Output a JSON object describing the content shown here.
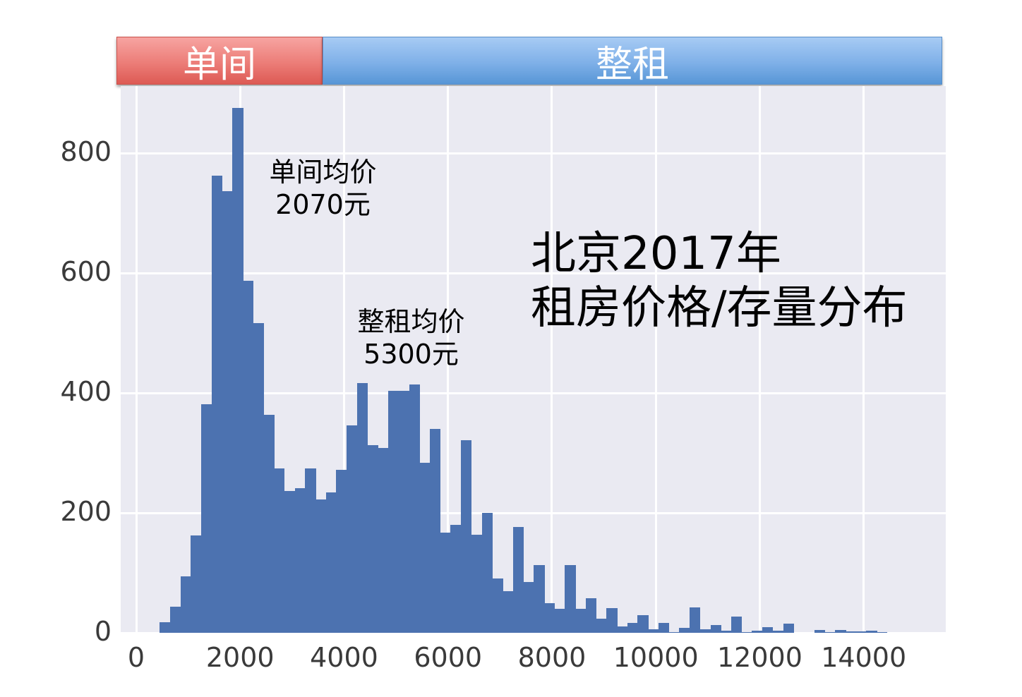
{
  "bands": {
    "left": {
      "label": "单间",
      "color": "#e8706a"
    },
    "right": {
      "label": "整租",
      "color": "#6aa3e0"
    }
  },
  "annotations": {
    "single_avg": {
      "line1": "单间均价",
      "line2": "2070元"
    },
    "whole_avg": {
      "line1": "整租均价",
      "line2": "5300元"
    },
    "title_line1": "北京2017年",
    "title_line2": "租房价格/存量分布"
  },
  "axes": {
    "y_ticks": [
      "0",
      "200",
      "400",
      "600",
      "800"
    ],
    "x_ticks": [
      "0",
      "2000",
      "4000",
      "6000",
      "8000",
      "10000",
      "12000",
      "14000"
    ]
  },
  "chart_data": {
    "type": "bar",
    "title": "北京2017年 租房价格/存量分布",
    "xlabel": "",
    "ylabel": "",
    "bar_color": "#4c72b0",
    "background": "#eaeaf2",
    "grid": true,
    "bin_start": 450,
    "bin_width": 200,
    "xlim": [
      -300,
      15600
    ],
    "ylim": [
      0,
      912
    ],
    "x_ticks": [
      0,
      2000,
      4000,
      6000,
      8000,
      10000,
      12000,
      14000
    ],
    "y_ticks": [
      0,
      200,
      400,
      600,
      800
    ],
    "values": [
      18,
      44,
      94,
      162,
      381,
      762,
      736,
      875,
      587,
      516,
      364,
      274,
      236,
      241,
      274,
      222,
      234,
      272,
      346,
      416,
      313,
      308,
      403,
      403,
      414,
      284,
      340,
      167,
      180,
      321,
      163,
      200,
      91,
      70,
      177,
      85,
      113,
      49,
      40,
      113,
      40,
      58,
      23,
      41,
      11,
      16,
      30,
      6,
      16,
      1,
      8,
      42,
      6,
      13,
      4,
      27,
      1,
      4,
      10,
      4,
      15,
      0,
      0,
      5,
      1,
      5,
      2,
      2,
      3,
      1
    ],
    "annotations": [
      {
        "text": "单间均价 2070元",
        "x": 2070
      },
      {
        "text": "整租均价 5300元",
        "x": 5300
      }
    ],
    "category_bands": [
      {
        "label": "单间",
        "x_range": [
          -300,
          3700
        ],
        "color": "#e8706a"
      },
      {
        "label": "整租",
        "x_range": [
          3700,
          15600
        ],
        "color": "#6aa3e0"
      }
    ]
  }
}
